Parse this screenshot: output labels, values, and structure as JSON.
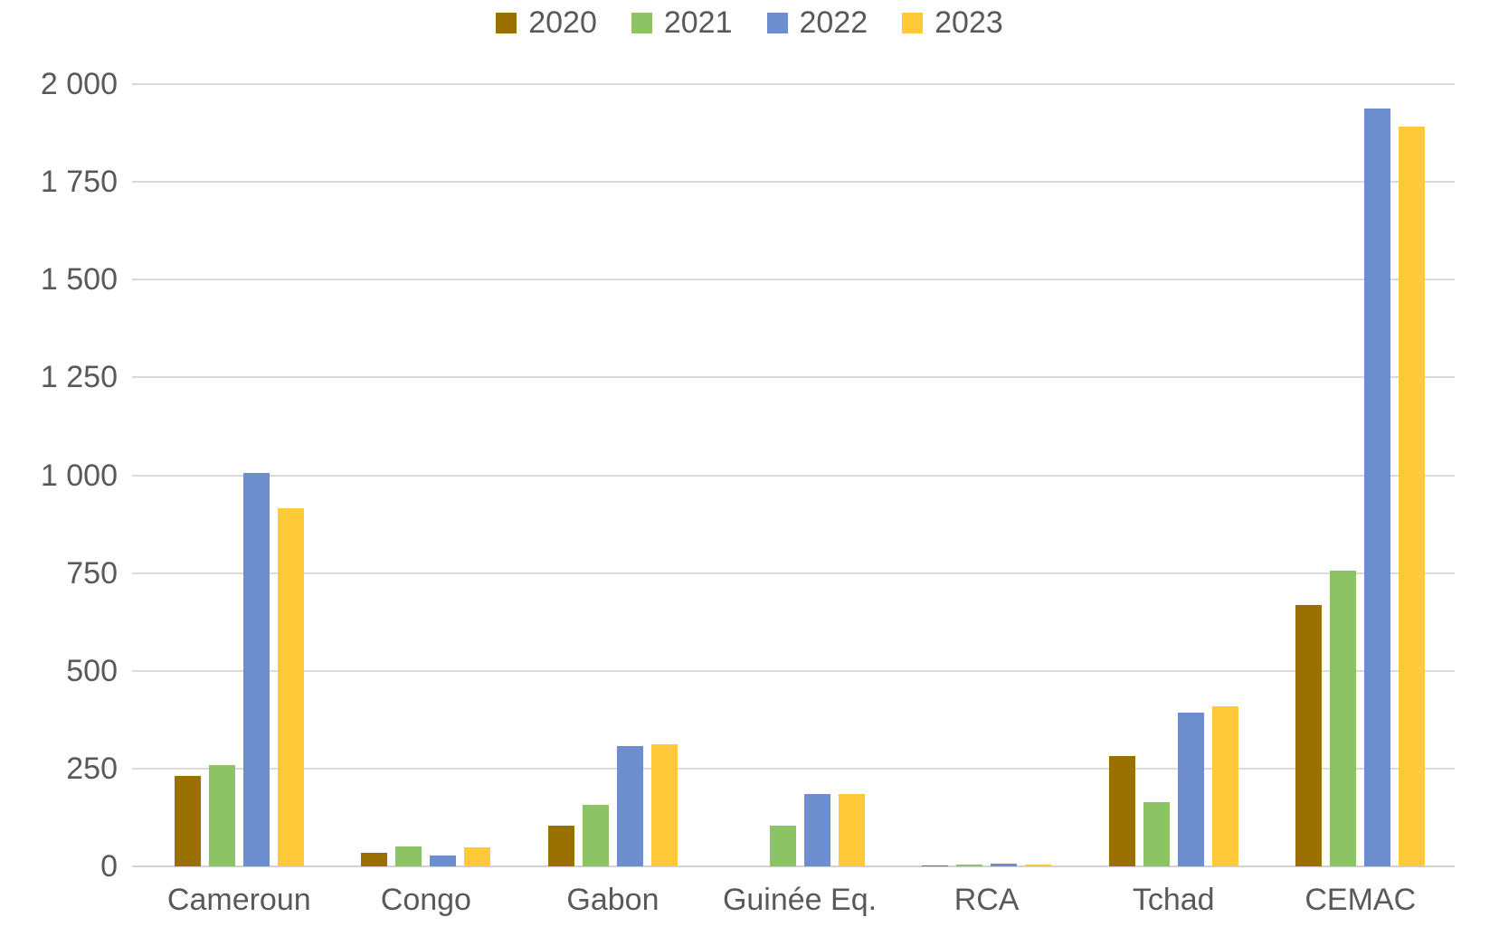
{
  "chart_data": {
    "type": "bar",
    "categories": [
      "Cameroun",
      "Congo",
      "Gabon",
      "Guinée Eq.",
      "RCA",
      "Tchad",
      "CEMAC"
    ],
    "series": [
      {
        "name": "2020",
        "color": "#9A7100",
        "values": [
          232,
          35,
          103,
          0,
          2,
          283,
          668
        ]
      },
      {
        "name": "2021",
        "color": "#8CC465",
        "values": [
          260,
          52,
          158,
          103,
          5,
          165,
          755
        ]
      },
      {
        "name": "2022",
        "color": "#6C8ECE",
        "values": [
          1005,
          28,
          308,
          186,
          6,
          394,
          1938
        ]
      },
      {
        "name": "2023",
        "color": "#FFC93A",
        "values": [
          916,
          48,
          312,
          186,
          5,
          410,
          1892
        ]
      }
    ],
    "title": "",
    "xlabel": "",
    "ylabel": "",
    "ylim": [
      0,
      2000
    ],
    "yticks": [
      {
        "value": 0,
        "label": "0"
      },
      {
        "value": 250,
        "label": "250"
      },
      {
        "value": 500,
        "label": "500"
      },
      {
        "value": 750,
        "label": "750"
      },
      {
        "value": 1000,
        "label": "1 000"
      },
      {
        "value": 1250,
        "label": "1 250"
      },
      {
        "value": 1500,
        "label": "1 500"
      },
      {
        "value": 1750,
        "label": "1 750"
      },
      {
        "value": 2000,
        "label": "2 000"
      }
    ],
    "grid": true,
    "legend_position": "top",
    "colors": {
      "gridline": "#D9D9D9",
      "axis_text": "#595959",
      "background": "#FFFFFF"
    }
  }
}
